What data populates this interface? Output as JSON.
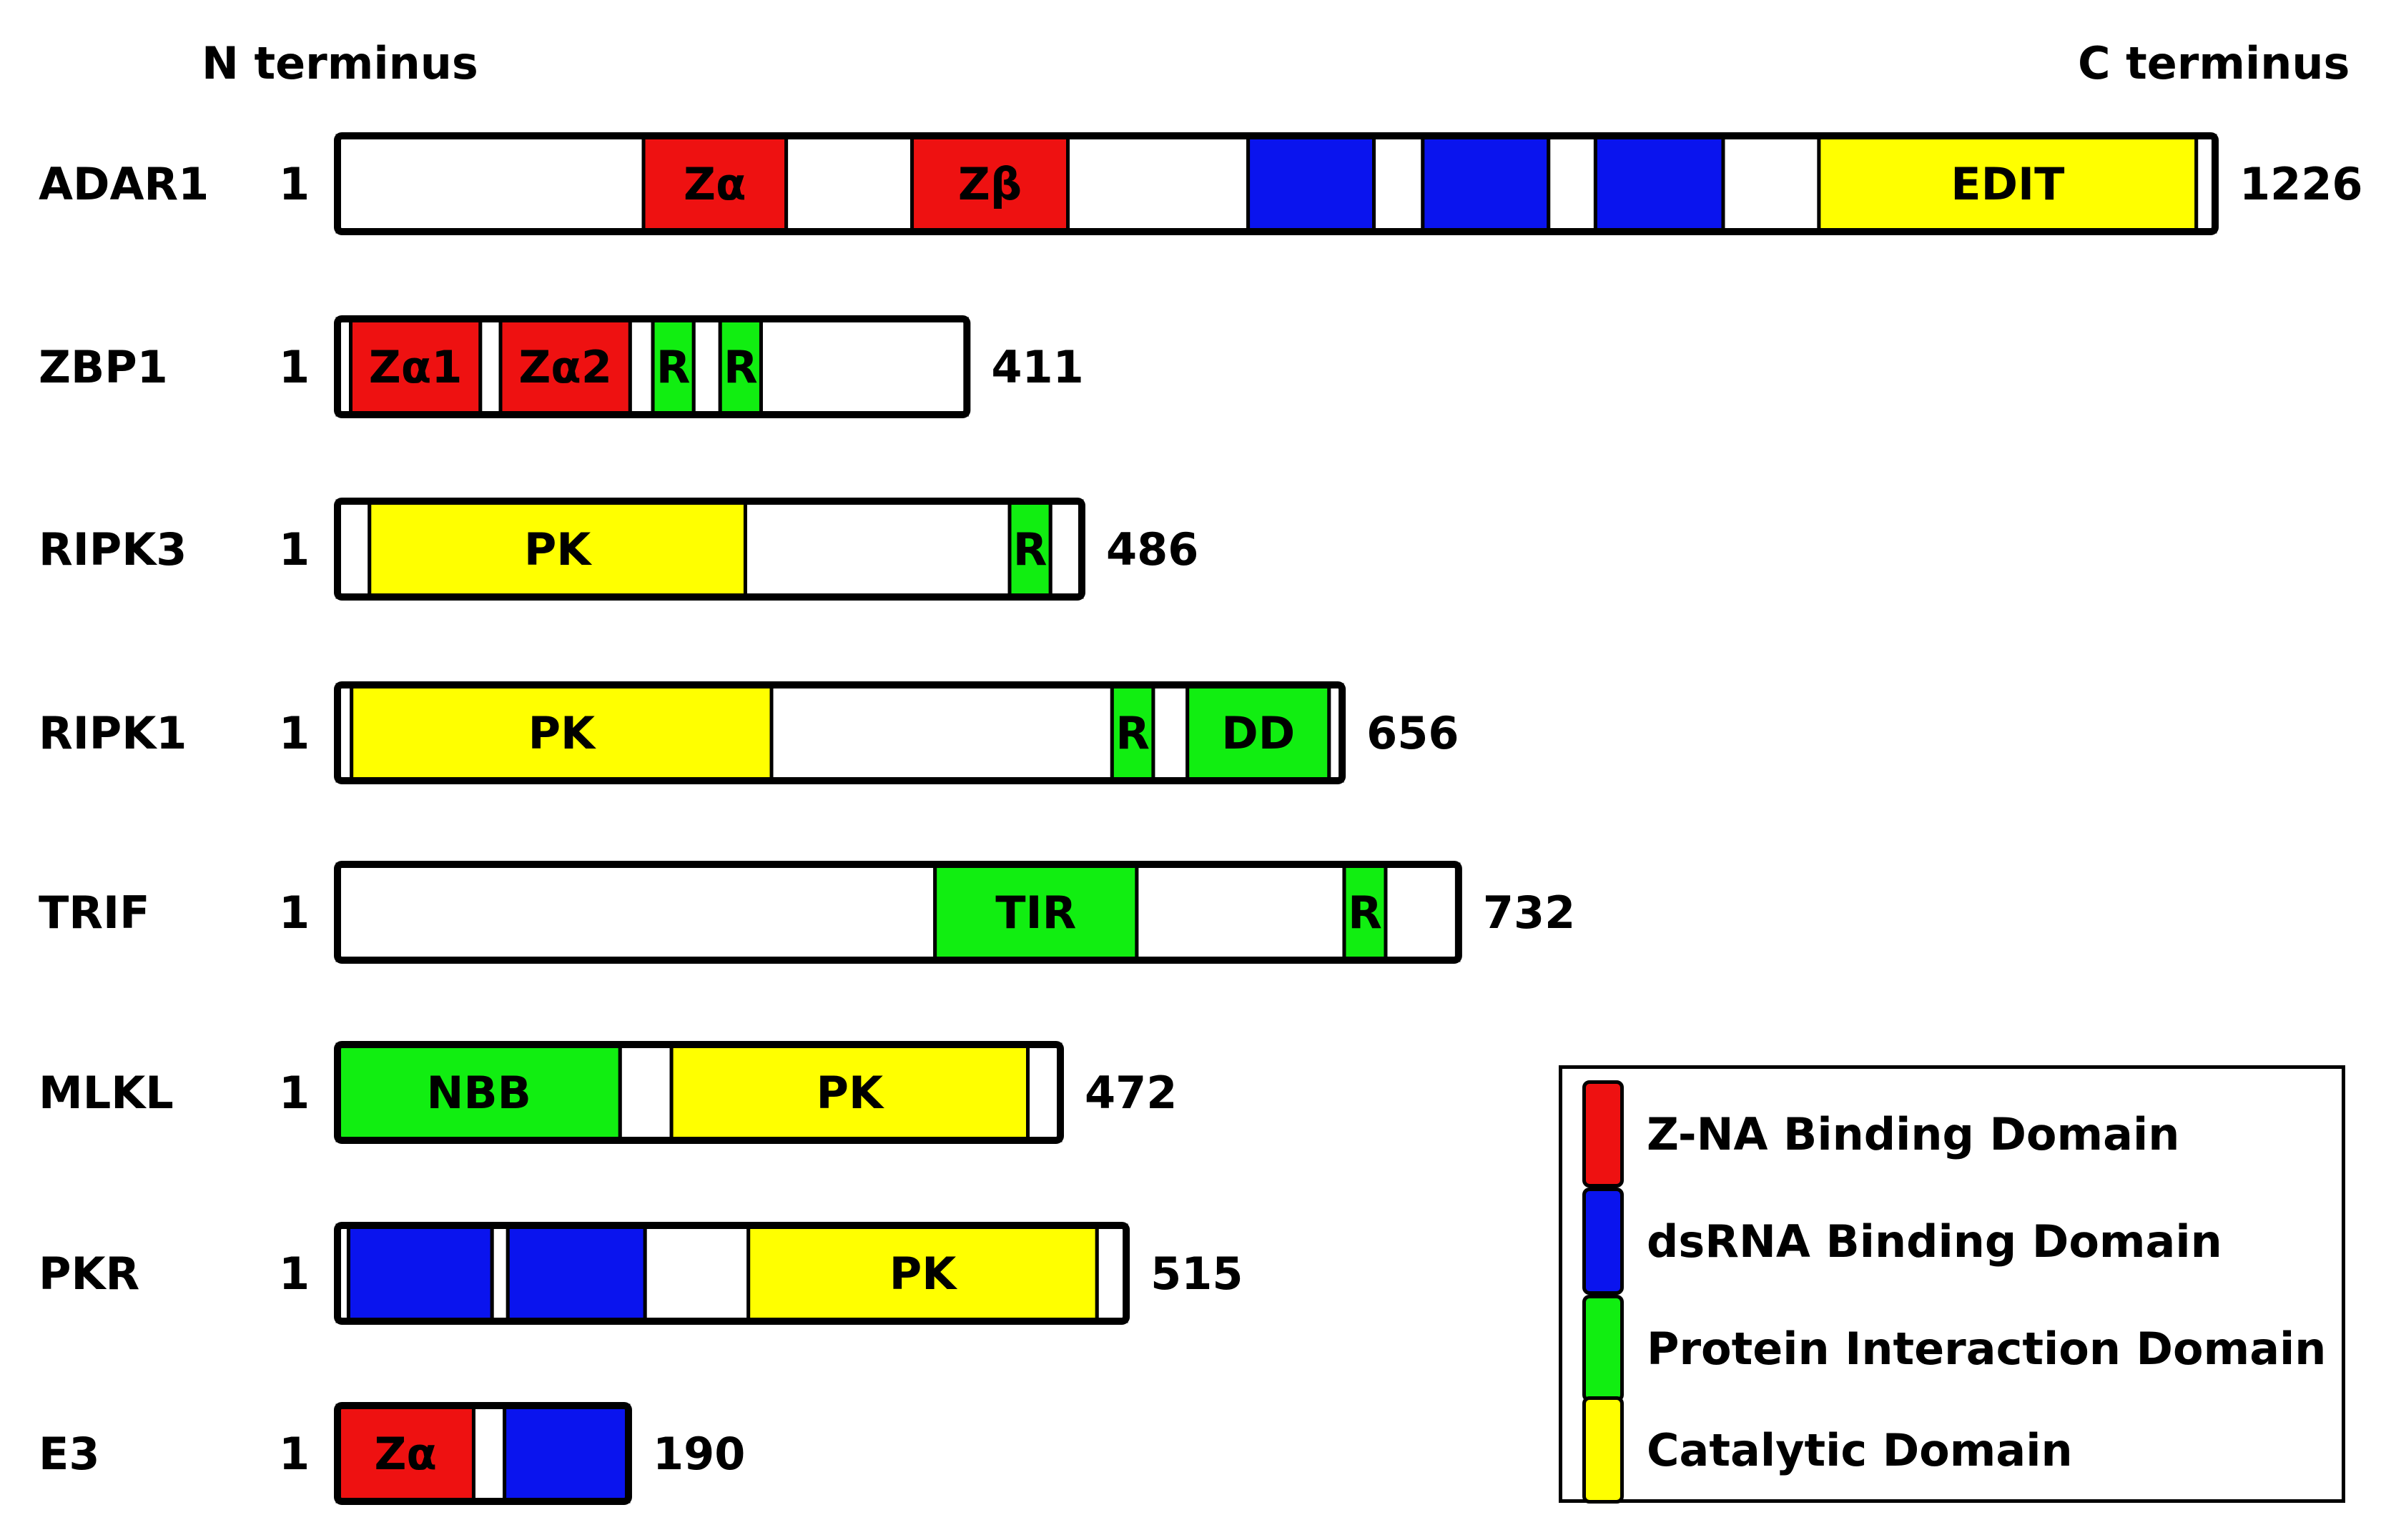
{
  "header": {
    "n_terminus": "N terminus",
    "c_terminus": "C terminus"
  },
  "colors": {
    "red": "#ee1111",
    "blue": "#0a14ee",
    "green": "#11ee11",
    "yellow": "#ffff00",
    "white": "#ffffff"
  },
  "proteins": [
    {
      "name": "ADAR1",
      "start": "1",
      "length": "1226",
      "domains": [
        {
          "label": "",
          "color": "white",
          "from": 0,
          "to": 0.163
        },
        {
          "label": "Zα",
          "color": "red",
          "from": 0.163,
          "to": 0.239
        },
        {
          "label": "",
          "color": "white",
          "from": 0.239,
          "to": 0.306
        },
        {
          "label": "Zβ",
          "color": "red",
          "from": 0.306,
          "to": 0.389
        },
        {
          "label": "",
          "color": "white",
          "from": 0.389,
          "to": 0.485
        },
        {
          "label": "",
          "color": "blue",
          "from": 0.485,
          "to": 0.552
        },
        {
          "label": "",
          "color": "white",
          "from": 0.552,
          "to": 0.578
        },
        {
          "label": "",
          "color": "blue",
          "from": 0.578,
          "to": 0.645
        },
        {
          "label": "",
          "color": "white",
          "from": 0.645,
          "to": 0.67
        },
        {
          "label": "",
          "color": "blue",
          "from": 0.67,
          "to": 0.738
        },
        {
          "label": "",
          "color": "white",
          "from": 0.738,
          "to": 0.789
        },
        {
          "label": "EDIT",
          "color": "yellow",
          "from": 0.789,
          "to": 0.99
        },
        {
          "label": "",
          "color": "white",
          "from": 0.99,
          "to": 1
        }
      ]
    },
    {
      "name": "ZBP1",
      "start": "1",
      "length": "411",
      "domains": [
        {
          "label": "",
          "color": "white",
          "from": 0,
          "to": 0.021
        },
        {
          "label": "Zα1",
          "color": "red",
          "from": 0.021,
          "to": 0.227
        },
        {
          "label": "",
          "color": "white",
          "from": 0.227,
          "to": 0.259
        },
        {
          "label": "Zα2",
          "color": "red",
          "from": 0.259,
          "to": 0.465
        },
        {
          "label": "",
          "color": "white",
          "from": 0.465,
          "to": 0.501
        },
        {
          "label": "R",
          "color": "green",
          "from": 0.501,
          "to": 0.566
        },
        {
          "label": "",
          "color": "white",
          "from": 0.566,
          "to": 0.608
        },
        {
          "label": "R",
          "color": "green",
          "from": 0.608,
          "to": 0.673
        },
        {
          "label": "",
          "color": "white",
          "from": 0.673,
          "to": 1
        }
      ]
    },
    {
      "name": "RIPK3",
      "start": "1",
      "length": "486",
      "domains": [
        {
          "label": "",
          "color": "white",
          "from": 0,
          "to": 0.043
        },
        {
          "label": "PK",
          "color": "yellow",
          "from": 0.043,
          "to": 0.548
        },
        {
          "label": "",
          "color": "white",
          "from": 0.548,
          "to": 0.903
        },
        {
          "label": "R",
          "color": "green",
          "from": 0.903,
          "to": 0.958
        },
        {
          "label": "",
          "color": "white",
          "from": 0.958,
          "to": 1
        }
      ]
    },
    {
      "name": "RIPK1",
      "start": "1",
      "length": "656",
      "domains": [
        {
          "label": "",
          "color": "white",
          "from": 0,
          "to": 0.014
        },
        {
          "label": "PK",
          "color": "yellow",
          "from": 0.014,
          "to": 0.432
        },
        {
          "label": "",
          "color": "white",
          "from": 0.432,
          "to": 0.771
        },
        {
          "label": "R",
          "color": "green",
          "from": 0.771,
          "to": 0.812
        },
        {
          "label": "",
          "color": "white",
          "from": 0.812,
          "to": 0.846
        },
        {
          "label": "DD",
          "color": "green",
          "from": 0.846,
          "to": 0.987
        },
        {
          "label": "",
          "color": "white",
          "from": 0.987,
          "to": 1
        }
      ]
    },
    {
      "name": "TRIF",
      "start": "1",
      "length": "732",
      "domains": [
        {
          "label": "",
          "color": "white",
          "from": 0,
          "to": 0.533
        },
        {
          "label": "TIR",
          "color": "green",
          "from": 0.533,
          "to": 0.713
        },
        {
          "label": "",
          "color": "white",
          "from": 0.713,
          "to": 0.898
        },
        {
          "label": "R",
          "color": "green",
          "from": 0.898,
          "to": 0.935
        },
        {
          "label": "",
          "color": "white",
          "from": 0.935,
          "to": 1
        }
      ]
    },
    {
      "name": "MLKL",
      "start": "1",
      "length": "472",
      "domains": [
        {
          "label": "NBB",
          "color": "green",
          "from": 0,
          "to": 0.391
        },
        {
          "label": "",
          "color": "white",
          "from": 0.391,
          "to": 0.462
        },
        {
          "label": "PK",
          "color": "yellow",
          "from": 0.462,
          "to": 0.955
        },
        {
          "label": "",
          "color": "white",
          "from": 0.955,
          "to": 1
        }
      ]
    },
    {
      "name": "PKR",
      "start": "1",
      "length": "515",
      "domains": [
        {
          "label": "",
          "color": "white",
          "from": 0,
          "to": 0.014
        },
        {
          "label": "",
          "color": "blue",
          "from": 0.014,
          "to": 0.196
        },
        {
          "label": "",
          "color": "white",
          "from": 0.196,
          "to": 0.216
        },
        {
          "label": "",
          "color": "blue",
          "from": 0.216,
          "to": 0.39
        },
        {
          "label": "",
          "color": "white",
          "from": 0.39,
          "to": 0.521
        },
        {
          "label": "PK",
          "color": "yellow",
          "from": 0.521,
          "to": 0.963
        },
        {
          "label": "",
          "color": "white",
          "from": 0.963,
          "to": 1
        }
      ]
    },
    {
      "name": "E3",
      "start": "1",
      "length": "190",
      "domains": [
        {
          "label": "Zα",
          "color": "red",
          "from": 0,
          "to": 0.468
        },
        {
          "label": "",
          "color": "white",
          "from": 0.468,
          "to": 0.574
        },
        {
          "label": "",
          "color": "blue",
          "from": 0.574,
          "to": 1
        }
      ]
    }
  ],
  "legend": [
    {
      "label": "Z-NA Binding Domain",
      "color": "red"
    },
    {
      "label": "dsRNA Binding Domain",
      "color": "blue"
    },
    {
      "label": "Protein Interaction Domain",
      "color": "green"
    },
    {
      "label": "Catalytic Domain",
      "color": "yellow"
    }
  ]
}
